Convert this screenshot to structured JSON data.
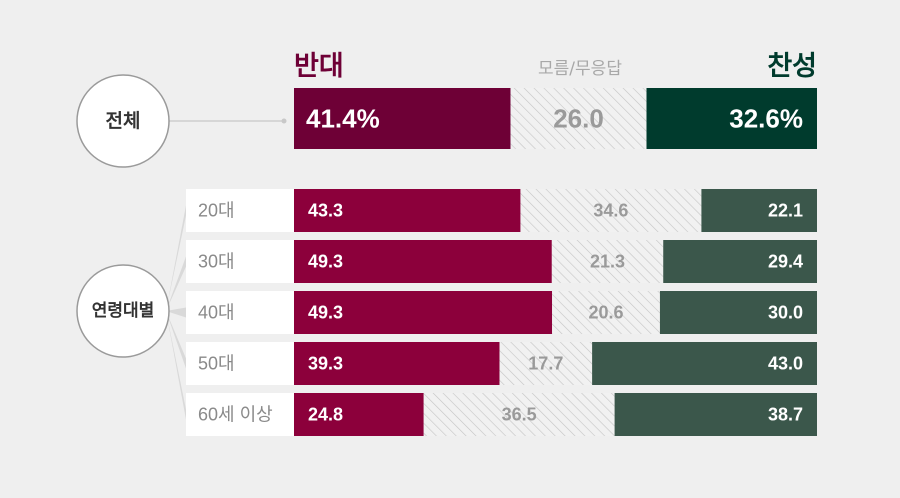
{
  "legend": {
    "oppose": "반대",
    "undecided": "모름/무응답",
    "support": "찬성"
  },
  "colors": {
    "oppose_total": "#6e0036",
    "support_total": "#003b2d",
    "oppose": "#8c003b",
    "support": "#3b574b",
    "undecided_fill": "#f1f1f1",
    "undecided_hatch": "#c4c4c4",
    "undecided_text": "#9a9a9a",
    "undecided_legend": "#a8a8a8",
    "background": "#efefef"
  },
  "chart_data": {
    "type": "bar",
    "stacked": true,
    "orientation": "horizontal",
    "unit": "%",
    "series_order": [
      "반대",
      "모름/무응답",
      "찬성"
    ],
    "total": {
      "group_label": "전체",
      "values": [
        41.4,
        26.0,
        32.6
      ],
      "value_labels": [
        "41.4%",
        "26.0",
        "32.6%"
      ]
    },
    "age_group": {
      "group_label": "연령대별",
      "categories": [
        "20대",
        "30대",
        "40대",
        "50대",
        "60세 이상"
      ],
      "series": [
        {
          "name": "반대",
          "values": [
            43.3,
            49.3,
            49.3,
            39.3,
            24.8
          ]
        },
        {
          "name": "모름/무응답",
          "values": [
            34.6,
            21.3,
            20.6,
            17.7,
            36.5
          ]
        },
        {
          "name": "찬성",
          "values": [
            22.1,
            29.4,
            30.0,
            43.0,
            38.7
          ]
        }
      ]
    }
  }
}
